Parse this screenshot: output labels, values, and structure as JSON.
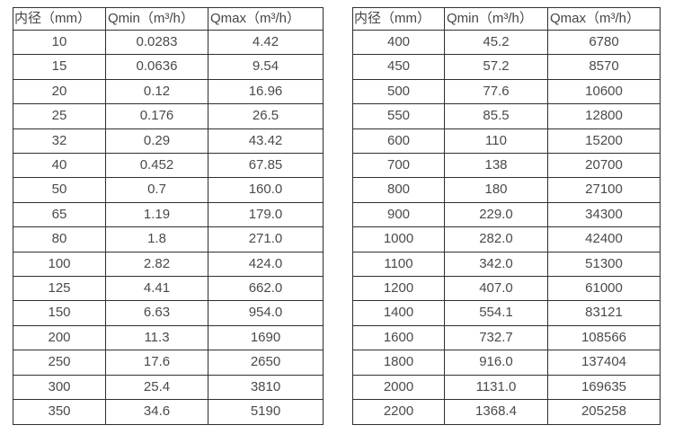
{
  "colors": {
    "background": "#ffffff",
    "border": "#2f2f2f",
    "text": "#4a4a4a"
  },
  "tables": [
    {
      "id": "small-diameters",
      "headers": [
        "内径（mm）",
        "Qmin（m³/h）",
        "Qmax（m³/h）"
      ],
      "rows": [
        [
          "10",
          "0.0283",
          "4.42"
        ],
        [
          "15",
          "0.0636",
          "9.54"
        ],
        [
          "20",
          "0.12",
          "16.96"
        ],
        [
          "25",
          "0.176",
          "26.5"
        ],
        [
          "32",
          "0.29",
          "43.42"
        ],
        [
          "40",
          "0.452",
          "67.85"
        ],
        [
          "50",
          "0.7",
          "160.0"
        ],
        [
          "65",
          "1.19",
          "179.0"
        ],
        [
          "80",
          "1.8",
          "271.0"
        ],
        [
          "100",
          "2.82",
          "424.0"
        ],
        [
          "125",
          "4.41",
          "662.0"
        ],
        [
          "150",
          "6.63",
          "954.0"
        ],
        [
          "200",
          "11.3",
          "1690"
        ],
        [
          "250",
          "17.6",
          "2650"
        ],
        [
          "300",
          "25.4",
          "3810"
        ],
        [
          "350",
          "34.6",
          "5190"
        ]
      ]
    },
    {
      "id": "large-diameters",
      "headers": [
        "内径（mm）",
        "Qmin（m³/h）",
        "Qmax（m³/h）"
      ],
      "rows": [
        [
          "400",
          "45.2",
          "6780"
        ],
        [
          "450",
          "57.2",
          "8570"
        ],
        [
          "500",
          "77.6",
          "10600"
        ],
        [
          "550",
          "85.5",
          "12800"
        ],
        [
          "600",
          "110",
          "15200"
        ],
        [
          "700",
          "138",
          "20700"
        ],
        [
          "800",
          "180",
          "27100"
        ],
        [
          "900",
          "229.0",
          "34300"
        ],
        [
          "1000",
          "282.0",
          "42400"
        ],
        [
          "1100",
          "342.0",
          "51300"
        ],
        [
          "1200",
          "407.0",
          "61000"
        ],
        [
          "1400",
          "554.1",
          "83121"
        ],
        [
          "1600",
          "732.7",
          "108566"
        ],
        [
          "1800",
          "916.0",
          "137404"
        ],
        [
          "2000",
          "1131.0",
          "169635"
        ],
        [
          "2200",
          "1368.4",
          "205258"
        ]
      ]
    }
  ]
}
